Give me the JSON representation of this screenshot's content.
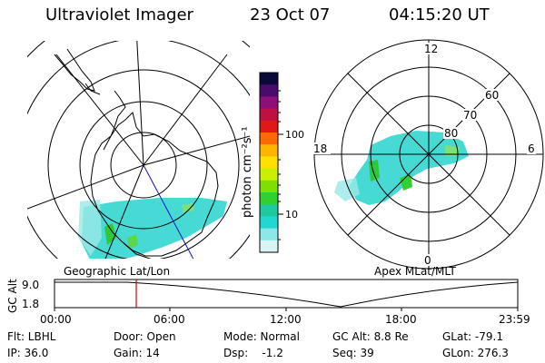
{
  "header": {
    "instrument": "Ultraviolet Imager",
    "date": "23 Oct 07",
    "time": "04:15:20 UT"
  },
  "colorbar": {
    "unit_label": "photon cm⁻²s⁻¹",
    "ticks": [
      "100",
      "10"
    ],
    "colors": [
      "#0a0a3a",
      "#4b0b6e",
      "#8e0f7a",
      "#c01042",
      "#e01818",
      "#ff6a00",
      "#ffb400",
      "#ffe000",
      "#c8f000",
      "#7de000",
      "#2fd02f",
      "#1ec8a0",
      "#20d8d0",
      "#8ce8e8",
      "#d8f4f4"
    ]
  },
  "left_map": {
    "label": "Geographic Lat/Lon"
  },
  "right_map": {
    "label": "Apex MLat/MLT",
    "mlt_labels": [
      "12",
      "6",
      "0",
      "18"
    ],
    "lat_labels": [
      "60",
      "70",
      "80"
    ]
  },
  "timeline": {
    "axis_label": "GC Alt",
    "y_ticks": [
      "9.0",
      "1.8"
    ],
    "x_ticks": [
      "00:00",
      "06:00",
      "12:00",
      "18:00",
      "23:59"
    ],
    "marker_color": "#cc0000"
  },
  "footer": {
    "row1": [
      "Flt: LBHL",
      "Door: Open",
      "Mode: Normal",
      "GC Alt: 8.8 Re",
      "GLat: -79.1"
    ],
    "row2": [
      "IP: 36.0",
      "Gain: 14",
      "Dsp:    -1.2",
      "Seq: 39",
      "GLon: 276.3"
    ]
  }
}
